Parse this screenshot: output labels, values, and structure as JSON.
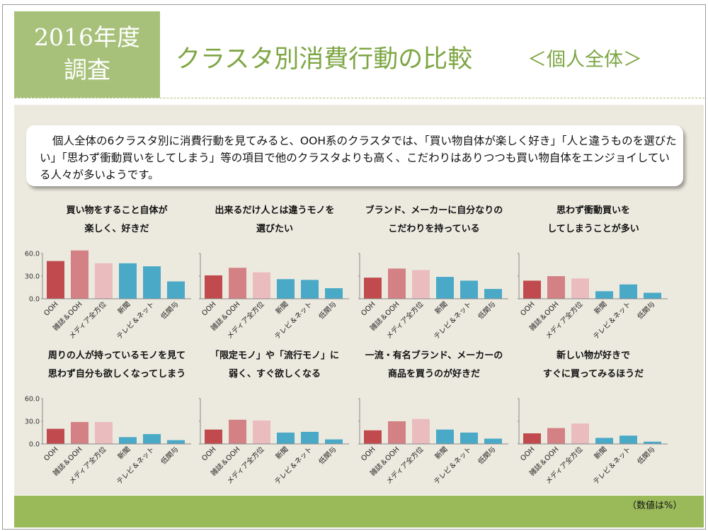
{
  "header": {
    "year_label": "2016年度",
    "survey_label": "調査",
    "title": "クラスタ別消費行動の比較",
    "subtitle": "＜個人全体＞"
  },
  "note": {
    "text": "個人全体の6クラスタ別に消費行動を見てみると、OOH系のクラスタでは、「買い物自体が楽しく好き」「人と違うものを選びたい」「思わず衝動買いをしてしまう」等の項目で他のクラスタよりも高く、こだわりはありつつも買い物自体をエンジョイしている人々が多いようです。"
  },
  "footer": {
    "unit_note": "（数値は%）"
  },
  "colors": {
    "OOH": "#c04a4d",
    "magazine_ooh": "#d38184",
    "media_all": "#ebbcbe",
    "newspaper": "#4aa9c7",
    "tv_net": "#4aa9c7",
    "low": "#4aa9c7",
    "frame_green": "#a8c17a",
    "title_green": "#7ea644"
  },
  "chart_data": [
    {
      "type": "bar",
      "title_lines": [
        "買い物をすること自体が",
        "楽しく、好きだ"
      ],
      "categories": [
        "OOH",
        "雑誌＆OOH",
        "メディア全方位",
        "新聞",
        "テレビ＆ネット",
        "低関与"
      ],
      "values": [
        50,
        64,
        47,
        47,
        43,
        23
      ],
      "yticks": [
        "0.0",
        "30.0",
        "60.0"
      ],
      "ylim": [
        0,
        70
      ]
    },
    {
      "type": "bar",
      "title_lines": [
        "出来るだけ人とは違うモノを",
        "選びたい"
      ],
      "categories": [
        "OOH",
        "雑誌＆OOH",
        "メディア全方位",
        "新聞",
        "テレビ＆ネット",
        "低関与"
      ],
      "values": [
        31,
        41,
        35,
        26,
        25,
        14
      ],
      "ylim": [
        0,
        70
      ]
    },
    {
      "type": "bar",
      "title_lines": [
        "ブランド、メーカーに自分なりの",
        "こだわりを持っている"
      ],
      "categories": [
        "OOH",
        "雑誌＆OOH",
        "メディア全方位",
        "新聞",
        "テレビ＆ネット",
        "低関与"
      ],
      "values": [
        28,
        40,
        38,
        29,
        24,
        13
      ],
      "ylim": [
        0,
        70
      ]
    },
    {
      "type": "bar",
      "title_lines": [
        "思わず衝動買いを",
        "してしまうことが多い"
      ],
      "categories": [
        "OOH",
        "雑誌＆OOH",
        "メディア全方位",
        "新聞",
        "テレビ＆ネット",
        "低関与"
      ],
      "values": [
        24,
        30,
        27,
        10,
        19,
        8
      ],
      "ylim": [
        0,
        70
      ]
    },
    {
      "type": "bar",
      "title_lines": [
        "周りの人が持っているモノを見て",
        "思わず自分も欲しくなってしまう"
      ],
      "categories": [
        "OOH",
        "雑誌＆OOH",
        "メディア全方位",
        "新聞",
        "テレビ＆ネット",
        "低関与"
      ],
      "values": [
        20,
        29,
        29,
        9,
        13,
        5
      ],
      "yticks": [
        "0.0",
        "30.0",
        "60.0"
      ],
      "ylim": [
        0,
        70
      ]
    },
    {
      "type": "bar",
      "title_lines": [
        "「限定モノ」や「流行モノ」に",
        "弱く、すぐ欲しくなる"
      ],
      "categories": [
        "OOH",
        "雑誌＆OOH",
        "メディア全方位",
        "新聞",
        "テレビ＆ネット",
        "低関与"
      ],
      "values": [
        19,
        32,
        31,
        15,
        16,
        6
      ],
      "ylim": [
        0,
        70
      ]
    },
    {
      "type": "bar",
      "title_lines": [
        "一流・有名ブランド、メーカーの",
        "商品を買うのが好きだ"
      ],
      "categories": [
        "OOH",
        "雑誌＆OOH",
        "メディア全方位",
        "新聞",
        "テレビ＆ネット",
        "低関与"
      ],
      "values": [
        18,
        30,
        33,
        19,
        15,
        7
      ],
      "ylim": [
        0,
        70
      ]
    },
    {
      "type": "bar",
      "title_lines": [
        "新しい物が好きで",
        "すぐに買ってみるほうだ"
      ],
      "categories": [
        "OOH",
        "雑誌＆OOH",
        "メディア全方位",
        "新聞",
        "テレビ＆ネット",
        "低関与"
      ],
      "values": [
        14,
        21,
        27,
        8,
        11,
        3
      ],
      "ylim": [
        0,
        70
      ]
    }
  ]
}
